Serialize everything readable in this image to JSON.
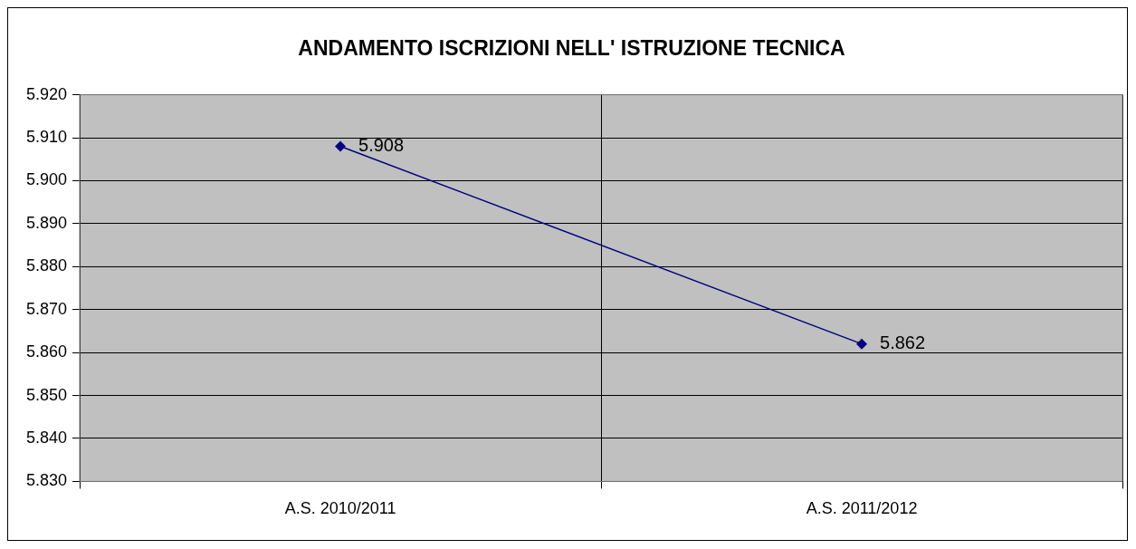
{
  "chart_data": {
    "type": "line",
    "title": "ANDAMENTO ISCRIZIONI NELL' ISTRUZIONE TECNICA",
    "categories": [
      "A.S. 2010/2011",
      "A.S. 2011/2012"
    ],
    "series": [
      {
        "color": "#000080",
        "values": [
          5908,
          5862
        ],
        "value_labels": [
          "5.908",
          "5.862"
        ]
      }
    ],
    "ylim": [
      5830,
      5920
    ],
    "yticks": [
      {
        "value": 5830,
        "label": "5.830"
      },
      {
        "value": 5840,
        "label": "5.840"
      },
      {
        "value": 5850,
        "label": "5.850"
      },
      {
        "value": 5860,
        "label": "5.860"
      },
      {
        "value": 5870,
        "label": "5.870"
      },
      {
        "value": 5880,
        "label": "5.880"
      },
      {
        "value": 5890,
        "label": "5.890"
      },
      {
        "value": 5900,
        "label": "5.900"
      },
      {
        "value": 5910,
        "label": "5.910"
      },
      {
        "value": 5920,
        "label": "5.920"
      }
    ],
    "grid": true,
    "legend": false,
    "marker": "diamond",
    "line_style": "solid"
  }
}
